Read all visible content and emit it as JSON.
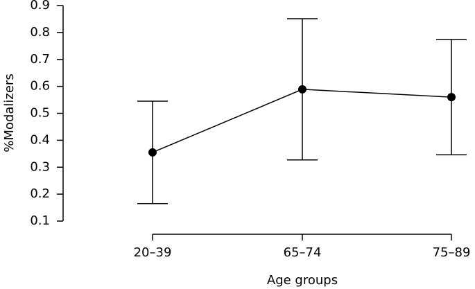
{
  "chart_data": {
    "type": "line",
    "categories": [
      "20–39",
      "65–74",
      "75–89"
    ],
    "values": [
      0.355,
      0.589,
      0.56
    ],
    "errors": [
      0.19,
      0.262,
      0.214
    ],
    "color": "#000000",
    "ylim": [
      0.1,
      0.9
    ],
    "yticks": [
      0.1,
      0.2,
      0.3,
      0.4,
      0.5,
      0.6,
      0.7,
      0.8,
      0.9
    ],
    "x_label": "Age groups",
    "y_label": "%Modalizers"
  }
}
